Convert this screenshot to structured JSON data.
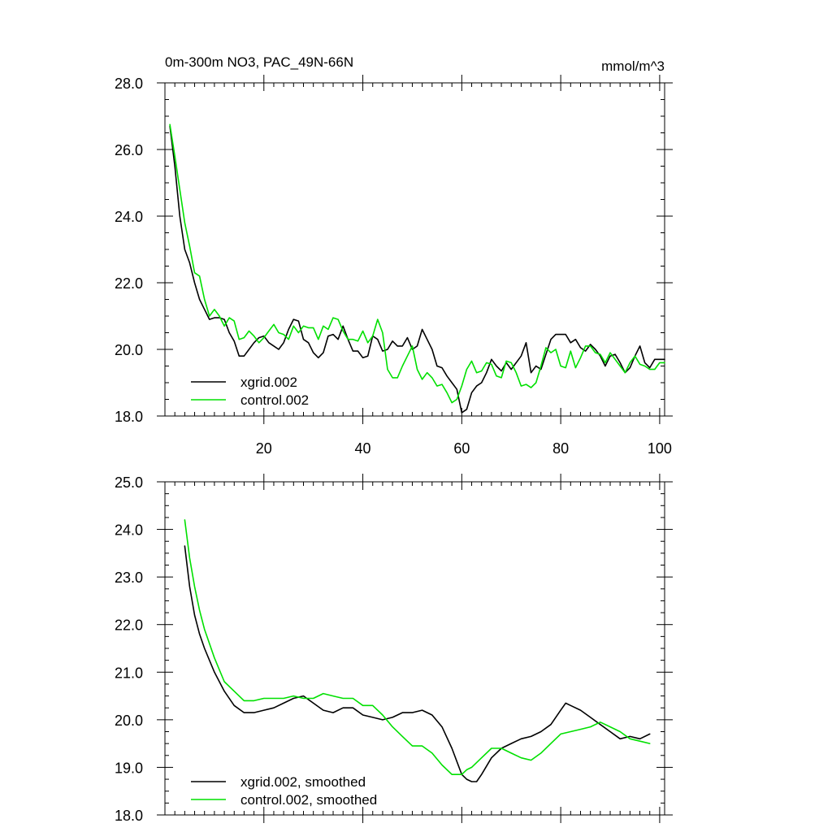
{
  "chart_data": [
    {
      "type": "line",
      "title": "0m-300m NO3, PAC_49N-66N",
      "units": "mmol/m^3",
      "xlabel": "",
      "ylabel": "",
      "xlim": [
        0,
        101
      ],
      "ylim": [
        18.0,
        28.0
      ],
      "x_ticks": [
        20,
        40,
        60,
        80,
        100
      ],
      "x_tick_labels": [
        "20",
        "40",
        "60",
        "80",
        "100"
      ],
      "y_ticks": [
        18,
        20,
        22,
        24,
        26,
        28
      ],
      "y_tick_labels": [
        "18.0",
        "20.0",
        "22.0",
        "24.0",
        "26.0",
        "28.0"
      ],
      "legend_position": "bottom-left",
      "series": [
        {
          "name": "xgrid.002",
          "color": "#000000",
          "x": [
            1,
            2,
            3,
            4,
            5,
            6,
            7,
            8,
            9,
            10,
            11,
            12,
            13,
            14,
            15,
            16,
            17,
            18,
            19,
            20,
            21,
            22,
            23,
            24,
            25,
            26,
            27,
            28,
            29,
            30,
            31,
            32,
            33,
            34,
            35,
            36,
            37,
            38,
            39,
            40,
            41,
            42,
            43,
            44,
            45,
            46,
            47,
            48,
            49,
            50,
            51,
            52,
            53,
            54,
            55,
            56,
            57,
            58,
            59,
            60,
            61,
            62,
            63,
            64,
            65,
            66,
            67,
            68,
            69,
            70,
            71,
            72,
            73,
            74,
            75,
            76,
            77,
            78,
            79,
            80,
            81,
            82,
            83,
            84,
            85,
            86,
            87,
            88,
            89,
            90,
            91,
            92,
            93,
            94,
            95,
            96,
            97,
            98,
            99,
            100,
            101
          ],
          "values": [
            26.7,
            25.5,
            24.0,
            23.0,
            22.6,
            22.0,
            21.5,
            21.2,
            20.9,
            20.95,
            20.95,
            20.9,
            20.5,
            20.25,
            19.8,
            19.8,
            20.0,
            20.2,
            20.35,
            20.4,
            20.2,
            20.1,
            20.0,
            20.2,
            20.6,
            20.9,
            20.85,
            20.3,
            20.2,
            19.9,
            19.75,
            19.9,
            20.4,
            20.45,
            20.3,
            20.7,
            20.3,
            19.95,
            19.95,
            19.75,
            19.8,
            20.4,
            20.3,
            19.95,
            20.0,
            20.25,
            20.1,
            20.1,
            20.35,
            20.0,
            20.1,
            20.6,
            20.3,
            20.0,
            19.5,
            19.45,
            19.2,
            19.0,
            18.8,
            18.1,
            18.2,
            18.7,
            18.9,
            19.0,
            19.3,
            19.7,
            19.5,
            19.35,
            19.6,
            19.4,
            19.6,
            19.8,
            20.2,
            19.3,
            19.5,
            19.4,
            19.85,
            20.3,
            20.45,
            20.45,
            20.45,
            20.2,
            20.3,
            20.05,
            19.95,
            20.15,
            20.0,
            19.8,
            19.5,
            19.8,
            19.85,
            19.6,
            19.3,
            19.45,
            19.8,
            20.1,
            19.6,
            19.45,
            19.7,
            19.7,
            19.7
          ]
        },
        {
          "name": "control.002",
          "color": "#00e000",
          "x": [
            1,
            2,
            3,
            4,
            5,
            6,
            7,
            8,
            9,
            10,
            11,
            12,
            13,
            14,
            15,
            16,
            17,
            18,
            19,
            20,
            21,
            22,
            23,
            24,
            25,
            26,
            27,
            28,
            29,
            30,
            31,
            32,
            33,
            34,
            35,
            36,
            37,
            38,
            39,
            40,
            41,
            42,
            43,
            44,
            45,
            46,
            47,
            48,
            49,
            50,
            51,
            52,
            53,
            54,
            55,
            56,
            57,
            58,
            59,
            60,
            61,
            62,
            63,
            64,
            65,
            66,
            67,
            68,
            69,
            70,
            71,
            72,
            73,
            74,
            75,
            76,
            77,
            78,
            79,
            80,
            81,
            82,
            83,
            84,
            85,
            86,
            87,
            88,
            89,
            90,
            91,
            92,
            93,
            94,
            95,
            96,
            97,
            98,
            99,
            100,
            101
          ],
          "values": [
            26.75,
            25.8,
            24.8,
            23.8,
            23.1,
            22.3,
            22.2,
            21.5,
            21.0,
            21.2,
            21.0,
            20.7,
            20.95,
            20.85,
            20.3,
            20.35,
            20.55,
            20.4,
            20.2,
            20.35,
            20.55,
            20.75,
            20.5,
            20.45,
            20.3,
            20.7,
            20.5,
            20.7,
            20.65,
            20.65,
            20.3,
            20.7,
            20.6,
            20.95,
            20.9,
            20.55,
            20.3,
            20.3,
            20.25,
            20.55,
            20.2,
            20.4,
            20.9,
            20.5,
            19.4,
            19.15,
            19.15,
            19.5,
            19.8,
            20.1,
            19.4,
            19.1,
            19.3,
            19.15,
            18.9,
            18.95,
            18.7,
            18.4,
            18.5,
            18.9,
            19.4,
            19.65,
            19.3,
            19.35,
            19.6,
            19.55,
            19.2,
            19.15,
            19.65,
            19.6,
            19.3,
            18.9,
            18.95,
            18.85,
            19.0,
            19.5,
            20.05,
            19.9,
            20.0,
            19.5,
            19.45,
            19.95,
            19.45,
            19.75,
            20.1,
            20.1,
            19.9,
            19.85,
            19.6,
            19.9,
            19.7,
            19.5,
            19.3,
            19.6,
            19.8,
            19.55,
            19.5,
            19.4,
            19.4,
            19.6,
            19.6
          ]
        }
      ]
    },
    {
      "type": "line",
      "title": "",
      "xlabel": "",
      "ylabel": "",
      "xlim": [
        0,
        101
      ],
      "ylim": [
        18.0,
        25.0
      ],
      "x_ticks": [
        20,
        40,
        60,
        80,
        100
      ],
      "x_tick_labels": [],
      "y_ticks": [
        18,
        19,
        20,
        21,
        22,
        23,
        24,
        25
      ],
      "y_tick_labels": [
        "18.0",
        "19.0",
        "20.0",
        "21.0",
        "22.0",
        "23.0",
        "24.0",
        "25.0"
      ],
      "legend_position": "bottom-left",
      "series": [
        {
          "name": "xgrid.002, smoothed",
          "color": "#000000",
          "x": [
            4,
            5,
            6,
            7,
            8,
            10,
            12,
            14,
            16,
            18,
            20,
            22,
            24,
            26,
            28,
            30,
            32,
            34,
            36,
            38,
            40,
            42,
            44,
            46,
            48,
            50,
            52,
            54,
            56,
            58,
            60,
            61,
            62,
            63,
            64,
            66,
            68,
            70,
            72,
            74,
            76,
            78,
            80,
            81,
            82,
            84,
            86,
            88,
            90,
            92,
            94,
            96,
            98
          ],
          "values": [
            23.65,
            22.8,
            22.2,
            21.8,
            21.5,
            21.0,
            20.6,
            20.3,
            20.15,
            20.15,
            20.2,
            20.25,
            20.35,
            20.45,
            20.5,
            20.35,
            20.2,
            20.15,
            20.25,
            20.25,
            20.1,
            20.05,
            20.0,
            20.05,
            20.15,
            20.15,
            20.2,
            20.1,
            19.85,
            19.4,
            18.85,
            18.75,
            18.7,
            18.7,
            18.85,
            19.2,
            19.4,
            19.5,
            19.6,
            19.65,
            19.75,
            19.9,
            20.2,
            20.35,
            20.3,
            20.2,
            20.05,
            19.9,
            19.75,
            19.6,
            19.65,
            19.6,
            19.7
          ]
        },
        {
          "name": "control.002, smoothed",
          "color": "#00e000",
          "x": [
            4,
            5,
            6,
            7,
            8,
            10,
            12,
            14,
            16,
            18,
            20,
            22,
            24,
            26,
            28,
            30,
            32,
            34,
            36,
            38,
            40,
            42,
            44,
            46,
            48,
            50,
            52,
            54,
            56,
            58,
            60,
            61,
            62,
            64,
            66,
            68,
            70,
            72,
            74,
            76,
            78,
            80,
            82,
            84,
            86,
            88,
            90,
            92,
            94,
            96,
            98
          ],
          "values": [
            24.2,
            23.4,
            22.8,
            22.3,
            21.9,
            21.3,
            20.8,
            20.6,
            20.4,
            20.4,
            20.45,
            20.45,
            20.45,
            20.5,
            20.45,
            20.45,
            20.55,
            20.5,
            20.45,
            20.45,
            20.3,
            20.3,
            20.1,
            19.85,
            19.65,
            19.45,
            19.45,
            19.3,
            19.05,
            18.85,
            18.85,
            18.95,
            19.0,
            19.2,
            19.4,
            19.4,
            19.3,
            19.2,
            19.15,
            19.3,
            19.5,
            19.7,
            19.75,
            19.8,
            19.85,
            19.95,
            19.85,
            19.75,
            19.6,
            19.55,
            19.5
          ]
        }
      ]
    }
  ]
}
